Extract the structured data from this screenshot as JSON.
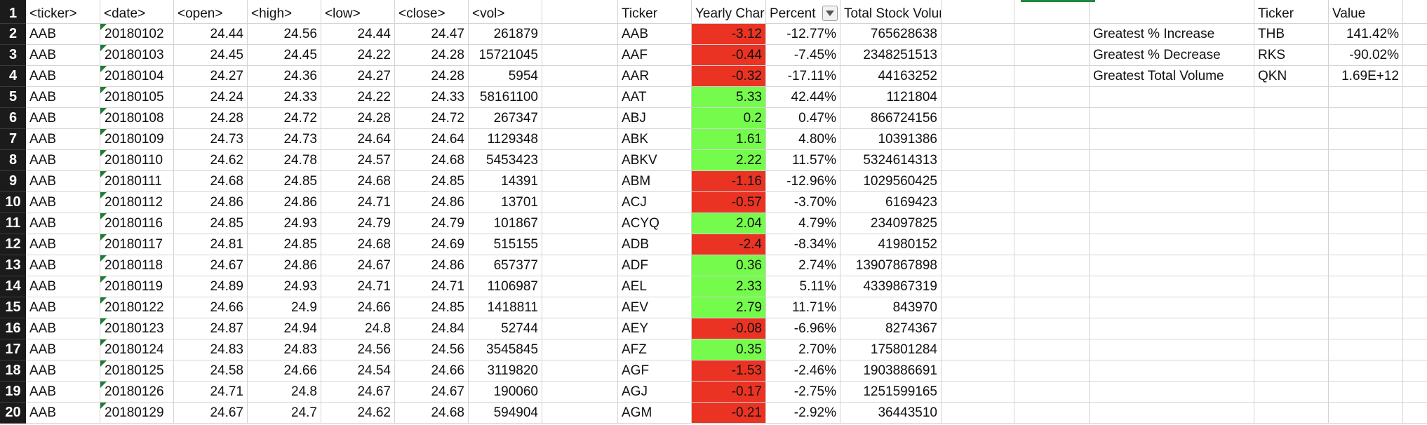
{
  "row_numbers": [
    "1",
    "2",
    "3",
    "4",
    "5",
    "6",
    "7",
    "8",
    "9",
    "10",
    "11",
    "12",
    "13",
    "14",
    "15",
    "16",
    "17",
    "18",
    "19",
    "20"
  ],
  "raw_headers": [
    "<ticker>",
    "<date>",
    "<open>",
    "<high>",
    "<low>",
    "<close>",
    "<vol>"
  ],
  "raw_rows": [
    [
      "AAB",
      "20180102",
      "24.44",
      "24.56",
      "24.44",
      "24.47",
      "261879"
    ],
    [
      "AAB",
      "20180103",
      "24.45",
      "24.45",
      "24.22",
      "24.28",
      "15721045"
    ],
    [
      "AAB",
      "20180104",
      "24.27",
      "24.36",
      "24.27",
      "24.28",
      "5954"
    ],
    [
      "AAB",
      "20180105",
      "24.24",
      "24.33",
      "24.22",
      "24.33",
      "58161100"
    ],
    [
      "AAB",
      "20180108",
      "24.28",
      "24.72",
      "24.28",
      "24.72",
      "267347"
    ],
    [
      "AAB",
      "20180109",
      "24.73",
      "24.73",
      "24.64",
      "24.64",
      "1129348"
    ],
    [
      "AAB",
      "20180110",
      "24.62",
      "24.78",
      "24.57",
      "24.68",
      "5453423"
    ],
    [
      "AAB",
      "20180111",
      "24.68",
      "24.85",
      "24.68",
      "24.85",
      "14391"
    ],
    [
      "AAB",
      "20180112",
      "24.86",
      "24.86",
      "24.71",
      "24.86",
      "13701"
    ],
    [
      "AAB",
      "20180116",
      "24.85",
      "24.93",
      "24.79",
      "24.79",
      "101867"
    ],
    [
      "AAB",
      "20180117",
      "24.81",
      "24.85",
      "24.68",
      "24.69",
      "515155"
    ],
    [
      "AAB",
      "20180118",
      "24.67",
      "24.86",
      "24.67",
      "24.86",
      "657377"
    ],
    [
      "AAB",
      "20180119",
      "24.89",
      "24.93",
      "24.71",
      "24.71",
      "1106987"
    ],
    [
      "AAB",
      "20180122",
      "24.66",
      "24.9",
      "24.66",
      "24.85",
      "1418811"
    ],
    [
      "AAB",
      "20180123",
      "24.87",
      "24.94",
      "24.8",
      "24.84",
      "52744"
    ],
    [
      "AAB",
      "20180124",
      "24.83",
      "24.83",
      "24.56",
      "24.56",
      "3545845"
    ],
    [
      "AAB",
      "20180125",
      "24.58",
      "24.66",
      "24.54",
      "24.66",
      "3119820"
    ],
    [
      "AAB",
      "20180126",
      "24.71",
      "24.8",
      "24.67",
      "24.67",
      "190060"
    ],
    [
      "AAB",
      "20180129",
      "24.67",
      "24.7",
      "24.62",
      "24.68",
      "594904"
    ]
  ],
  "summary_headers": [
    "Ticker",
    "Yearly Char",
    "Percent",
    "Total Stock Volume"
  ],
  "summary_rows": [
    {
      "ticker": "AAB",
      "yearly_change": "-3.12",
      "percent": "-12.77%",
      "volume": "765628638",
      "status": "neg"
    },
    {
      "ticker": "AAF",
      "yearly_change": "-0.44",
      "percent": "-7.45%",
      "volume": "2348251513",
      "status": "neg"
    },
    {
      "ticker": "AAR",
      "yearly_change": "-0.32",
      "percent": "-17.11%",
      "volume": "44163252",
      "status": "neg"
    },
    {
      "ticker": "AAT",
      "yearly_change": "5.33",
      "percent": "42.44%",
      "volume": "1121804",
      "status": "pos"
    },
    {
      "ticker": "ABJ",
      "yearly_change": "0.2",
      "percent": "0.47%",
      "volume": "866724156",
      "status": "pos"
    },
    {
      "ticker": "ABK",
      "yearly_change": "1.61",
      "percent": "4.80%",
      "volume": "10391386",
      "status": "pos"
    },
    {
      "ticker": "ABKV",
      "yearly_change": "2.22",
      "percent": "11.57%",
      "volume": "5324614313",
      "status": "pos"
    },
    {
      "ticker": "ABM",
      "yearly_change": "-1.16",
      "percent": "-12.96%",
      "volume": "1029560425",
      "status": "neg"
    },
    {
      "ticker": "ACJ",
      "yearly_change": "-0.57",
      "percent": "-3.70%",
      "volume": "6169423",
      "status": "neg"
    },
    {
      "ticker": "ACYQ",
      "yearly_change": "2.04",
      "percent": "4.79%",
      "volume": "234097825",
      "status": "pos"
    },
    {
      "ticker": "ADB",
      "yearly_change": "-2.4",
      "percent": "-8.34%",
      "volume": "41980152",
      "status": "neg"
    },
    {
      "ticker": "ADF",
      "yearly_change": "0.36",
      "percent": "2.74%",
      "volume": "13907867898",
      "status": "pos"
    },
    {
      "ticker": "AEL",
      "yearly_change": "2.33",
      "percent": "5.11%",
      "volume": "4339867319",
      "status": "pos"
    },
    {
      "ticker": "AEV",
      "yearly_change": "2.79",
      "percent": "11.71%",
      "volume": "843970",
      "status": "pos"
    },
    {
      "ticker": "AEY",
      "yearly_change": "-0.08",
      "percent": "-6.96%",
      "volume": "8274367",
      "status": "neg"
    },
    {
      "ticker": "AFZ",
      "yearly_change": "0.35",
      "percent": "2.70%",
      "volume": "175801284",
      "status": "pos"
    },
    {
      "ticker": "AGF",
      "yearly_change": "-1.53",
      "percent": "-2.46%",
      "volume": "1903886691",
      "status": "neg"
    },
    {
      "ticker": "AGJ",
      "yearly_change": "-0.17",
      "percent": "-2.75%",
      "volume": "1251599165",
      "status": "neg"
    },
    {
      "ticker": "AGM",
      "yearly_change": "-0.21",
      "percent": "-2.92%",
      "volume": "36443510",
      "status": "neg"
    }
  ],
  "greatest_headers": [
    "Ticker",
    "Value"
  ],
  "greatest_rows": [
    {
      "label": "Greatest % Increase",
      "ticker": "THB",
      "value": "141.42%"
    },
    {
      "label": "Greatest % Decrease",
      "ticker": "RKS",
      "value": "-90.02%"
    },
    {
      "label": "Greatest Total Volume",
      "ticker": "QKN",
      "value": "1.69E+12"
    }
  ],
  "colors": {
    "negative": "#ea3323",
    "positive": "#75fb4c",
    "comment_marker": "#1e7d34",
    "selection": "#1f8a3c"
  }
}
